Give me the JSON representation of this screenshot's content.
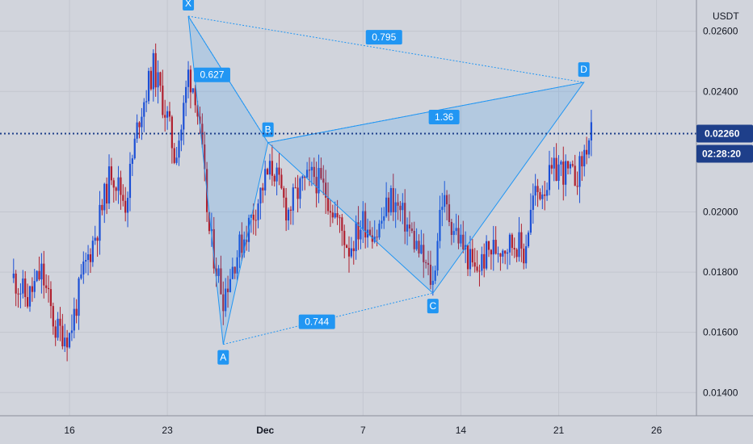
{
  "chart_data": {
    "type": "candlestick",
    "currency": "USDT",
    "ylim": [
      0.013,
      0.027
    ],
    "y_ticks": [
      "0.02600",
      "0.02400",
      "0.02000",
      "0.01800",
      "0.01600",
      "0.01400"
    ],
    "x_labels": [
      {
        "day": 16,
        "text": "16",
        "bold": false
      },
      {
        "day": 23,
        "text": "23",
        "bold": false
      },
      {
        "day": 30,
        "text": "Dec",
        "bold": true
      },
      {
        "day": 37,
        "text": "7",
        "bold": false
      },
      {
        "day": 44,
        "text": "14",
        "bold": false
      },
      {
        "day": 51,
        "text": "21",
        "bold": false
      },
      {
        "day": 58,
        "text": "26",
        "bold": false
      }
    ],
    "current_price": {
      "price": 0.0226,
      "label": "0.02260",
      "countdown": "02:28:20"
    },
    "pattern": {
      "points": [
        {
          "label": "X",
          "day": 24.5,
          "price": 0.0265
        },
        {
          "label": "A",
          "day": 27.0,
          "price": 0.0156
        },
        {
          "label": "B",
          "day": 30.2,
          "price": 0.0223
        },
        {
          "label": "C",
          "day": 42.0,
          "price": 0.0173
        },
        {
          "label": "D",
          "day": 52.8,
          "price": 0.0243
        }
      ],
      "ratios": [
        {
          "text": "0.627",
          "day": 26.2,
          "price": 0.02455
        },
        {
          "text": "0.795",
          "day": 38.5,
          "price": 0.0258
        },
        {
          "text": "1.36",
          "day": 42.8,
          "price": 0.02315
        },
        {
          "text": "0.744",
          "day": 33.7,
          "price": 0.01635
        }
      ]
    },
    "series_anchors": [
      [
        12.0,
        0.0178
      ],
      [
        13.0,
        0.0171
      ],
      [
        14.0,
        0.018
      ],
      [
        15.0,
        0.0161
      ],
      [
        16.0,
        0.0159
      ],
      [
        17.0,
        0.018
      ],
      [
        18.0,
        0.0195
      ],
      [
        19.0,
        0.0214
      ],
      [
        20.0,
        0.0203
      ],
      [
        21.0,
        0.0232
      ],
      [
        22.0,
        0.0248
      ],
      [
        23.0,
        0.0231
      ],
      [
        23.5,
        0.0219
      ],
      [
        24.0,
        0.0228
      ],
      [
        24.5,
        0.0246
      ],
      [
        25.0,
        0.024
      ],
      [
        25.5,
        0.0218
      ],
      [
        26.0,
        0.0193
      ],
      [
        26.5,
        0.0182
      ],
      [
        27.0,
        0.0172
      ],
      [
        27.8,
        0.0184
      ],
      [
        28.5,
        0.0192
      ],
      [
        29.2,
        0.02
      ],
      [
        30.0,
        0.0211
      ],
      [
        30.6,
        0.0215
      ],
      [
        31.0,
        0.0208
      ],
      [
        31.6,
        0.02
      ],
      [
        32.5,
        0.0208
      ],
      [
        33.5,
        0.0212
      ],
      [
        34.5,
        0.0205
      ],
      [
        35.2,
        0.0197
      ],
      [
        36.0,
        0.0188
      ],
      [
        37.0,
        0.0197
      ],
      [
        38.0,
        0.0193
      ],
      [
        39.0,
        0.0205
      ],
      [
        40.0,
        0.0197
      ],
      [
        41.0,
        0.0187
      ],
      [
        42.0,
        0.0176
      ],
      [
        42.6,
        0.0205
      ],
      [
        43.2,
        0.0198
      ],
      [
        44.0,
        0.019
      ],
      [
        45.0,
        0.018
      ],
      [
        46.0,
        0.0187
      ],
      [
        47.0,
        0.0189
      ],
      [
        48.0,
        0.019
      ],
      [
        48.5,
        0.0186
      ],
      [
        49.2,
        0.0205
      ],
      [
        50.0,
        0.0209
      ],
      [
        51.0,
        0.0215
      ],
      [
        52.0,
        0.0211
      ],
      [
        52.5,
        0.0214
      ],
      [
        53.0,
        0.0222
      ],
      [
        53.4,
        0.0226
      ]
    ]
  }
}
